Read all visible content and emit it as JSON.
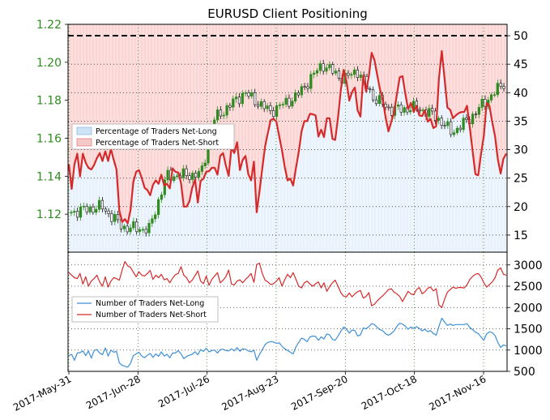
{
  "chart_data": {
    "title": "EURUSD Client Positioning",
    "top": {
      "type": "candlestick+line",
      "price_axis": {
        "ticks": [
          "1.12",
          "1.14",
          "1.16",
          "1.18",
          "1.20",
          "1.22"
        ],
        "ylim": [
          1.1,
          1.22
        ],
        "color": "#2e8b1f"
      },
      "pct_axis": {
        "ticks": [
          "15",
          "20",
          "25",
          "30",
          "35",
          "40",
          "45",
          "50"
        ],
        "ylim": [
          12,
          52
        ]
      },
      "reference_line": 50,
      "legend": {
        "placement": "center-left",
        "items": [
          "Percentage of Traders Net-Long",
          "Percentage of Traders Net-Short"
        ]
      },
      "net_short_pct": [
        27.4,
        23.1,
        27.4,
        29.3,
        25.3,
        29.3,
        27.7,
        26.8,
        26.5,
        27.3,
        28.5,
        29.4,
        28.0,
        29.7,
        28.0,
        30.1,
        28.2,
        26.5,
        19.3,
        17.3,
        17.8,
        17.1,
        19.4,
        24.3,
        26.1,
        26.4,
        25.0,
        23.3,
        22.9,
        22.0,
        23.8,
        24.6,
        24.0,
        25.6,
        23.7,
        24.0,
        23.2,
        26.7,
        26.1,
        26.0,
        24.1,
        20.0,
        20.0,
        20.9,
        23.3,
        24.7,
        20.7,
        24.5,
        24.9,
        26.1,
        26.2,
        26.8,
        26.8,
        25.6,
        28.9,
        29.4,
        27.2,
        25.4,
        30.4,
        29.4,
        31.3,
        26.4,
        28.2,
        28.9,
        25.7,
        24.6,
        27.9,
        19.0,
        22.7,
        26.7,
        30.6,
        33.0,
        35.2,
        35.4,
        34.9,
        32.4,
        29.9,
        27.0,
        24.6,
        24.9,
        23.7,
        26.8,
        29.6,
        33.2,
        35.0,
        35.0,
        36.3,
        36.2,
        36.0,
        32.3,
        33.5,
        32.2,
        35.5,
        35.5,
        31.9,
        31.7,
        35.6,
        40.5,
        44.0,
        42.0,
        38.6,
        40.1,
        40.9,
        36.9,
        35.8,
        43.0,
        40.2,
        42.9,
        47.0,
        45.7,
        43.0,
        40.5,
        38.7,
        35.5,
        33.2,
        34.9,
        36.5,
        39.7,
        42.7,
        42.9,
        39.8,
        37.1,
        38.2,
        36.6,
        37.7,
        36.0,
        35.9,
        36.9,
        34.9,
        35.4,
        33.8,
        34.1,
        42.5,
        47.3,
        42.5,
        37.4,
        37.0,
        35.5,
        36.0,
        36.4,
        36.6,
        36.6,
        37.7,
        33.9,
        29.7,
        25.7,
        25.5,
        29.2,
        32.4,
        38.2,
        37.7,
        34.8,
        32.3,
        28.3,
        25.8,
        28.4,
        29.3
      ]
    },
    "bottom": {
      "type": "line",
      "ylim": [
        500,
        3300
      ],
      "ticks": [
        "500",
        "1000",
        "1500",
        "2000",
        "2500",
        "3000"
      ],
      "legend": {
        "placement": "center-left"
      },
      "series": [
        {
          "name": "Number of Traders Net-Long",
          "color": "#3d8fd6",
          "values": [
            870,
            900,
            760,
            930,
            940,
            980,
            870,
            980,
            810,
            990,
            1010,
            930,
            890,
            1050,
            860,
            1000,
            950,
            970,
            700,
            640,
            620,
            600,
            690,
            870,
            910,
            950,
            860,
            820,
            880,
            920,
            830,
            910,
            850,
            960,
            860,
            900,
            820,
            930,
            930,
            990,
            910,
            800,
            850,
            880,
            900,
            960,
            890,
            1010,
            970,
            1040,
            960,
            990,
            1000,
            930,
            1010,
            1020,
            990,
            980,
            1030,
            980,
            1060,
            970,
            1030,
            1020,
            980,
            960,
            1000,
            760,
            900,
            1010,
            1130,
            1180,
            1200,
            1190,
            1160,
            1170,
            1090,
            1030,
            990,
            950,
            910,
            1080,
            1180,
            1280,
            1250,
            1200,
            1310,
            1330,
            1320,
            1230,
            1310,
            1260,
            1380,
            1360,
            1250,
            1230,
            1330,
            1440,
            1540,
            1490,
            1400,
            1470,
            1460,
            1330,
            1360,
            1520,
            1500,
            1550,
            1620,
            1600,
            1530,
            1480,
            1450,
            1380,
            1350,
            1390,
            1450,
            1560,
            1630,
            1610,
            1560,
            1490,
            1540,
            1510,
            1550,
            1510,
            1450,
            1490,
            1430,
            1460,
            1390,
            1350,
            1560,
            1750,
            1660,
            1580,
            1610,
            1580,
            1600,
            1600,
            1600,
            1600,
            1620,
            1530,
            1480,
            1420,
            1390,
            1310,
            1230,
            1380,
            1430,
            1410,
            1340,
            1180,
            1060,
            1120,
            1100
          ]
        },
        {
          "name": "Number of Traders Net-Short",
          "color": "#d62a2a",
          "values": [
            2820,
            2760,
            2700,
            2680,
            2800,
            2550,
            2720,
            2500,
            2620,
            2680,
            2760,
            2600,
            2500,
            2720,
            2480,
            2620,
            2700,
            2680,
            2640,
            2880,
            3080,
            2980,
            2940,
            2830,
            2720,
            2840,
            2760,
            2740,
            2800,
            2870,
            2660,
            2760,
            2700,
            2780,
            2650,
            2680,
            2580,
            2690,
            2770,
            2800,
            2960,
            2760,
            2700,
            2580,
            2640,
            2750,
            2860,
            2620,
            2560,
            2740,
            2520,
            2660,
            2740,
            2820,
            2580,
            2640,
            2720,
            2880,
            2550,
            2530,
            2620,
            2650,
            2580,
            2660,
            2720,
            2800,
            2590,
            3010,
            3040,
            2800,
            2640,
            2600,
            2540,
            2560,
            2620,
            2700,
            2500,
            2650,
            2780,
            2700,
            2820,
            2660,
            2500,
            2460,
            2580,
            2620,
            2550,
            2500,
            2560,
            2600,
            2460,
            2580,
            2380,
            2490,
            2580,
            2640,
            2500,
            2350,
            2270,
            2250,
            2340,
            2250,
            2320,
            2370,
            2400,
            2220,
            2260,
            2350,
            2040,
            2080,
            2160,
            2220,
            2280,
            2350,
            2420,
            2440,
            2360,
            2320,
            2260,
            2140,
            2260,
            2380,
            2320,
            2300,
            2420,
            2470,
            2320,
            2370,
            2450,
            2480,
            2390,
            2440,
            2060,
            2000,
            2190,
            2360,
            2420,
            2480,
            2450,
            2470,
            2470,
            2460,
            2530,
            2660,
            2730,
            2780,
            2800,
            2720,
            2580,
            2480,
            2540,
            2600,
            2700,
            2880,
            2930,
            2780,
            2760
          ]
        }
      ]
    },
    "x_labels": [
      "2017-May-31",
      "2017-Jun-28",
      "2017-Jul-26",
      "2017-Aug-23",
      "2017-Sep-20",
      "2017-Oct-18",
      "2017-Nov-16"
    ]
  }
}
